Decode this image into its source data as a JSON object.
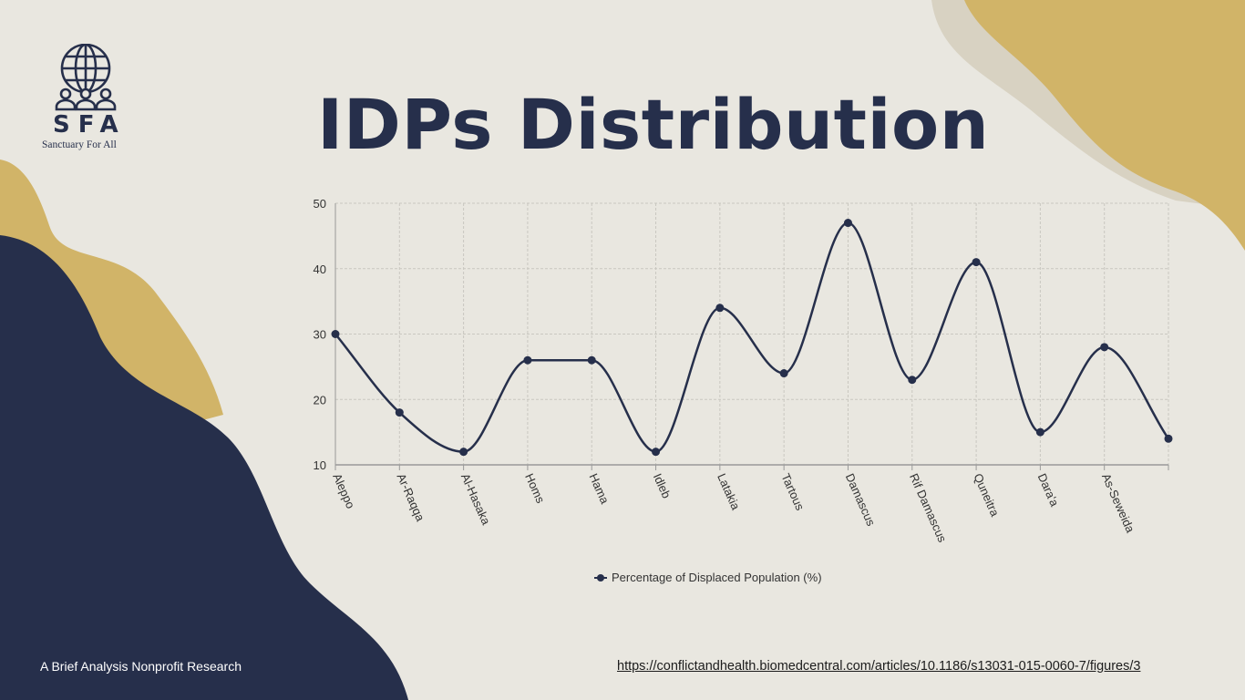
{
  "logo": {
    "initials": "SFA",
    "name": "Sanctuary For All"
  },
  "title": "IDPs Distribution",
  "footer": {
    "left": "A Brief Analysis Nonprofit Research",
    "link": "https://conflictandhealth.biomedcentral.com/articles/10.1186/s13031-015-0060-7/figures/3"
  },
  "colors": {
    "background": "#e9e7e0",
    "navy": "#262f4b",
    "gold": "#d1b468",
    "tan": "#d8d2c2"
  },
  "chart_data": {
    "type": "line",
    "title": "IDPs Distribution",
    "xlabel": "",
    "ylabel": "",
    "ylim": [
      10,
      50
    ],
    "yticks": [
      "10",
      "20",
      "30",
      "40",
      "50"
    ],
    "categories": [
      "Aleppo",
      "Ar-Raqqa",
      "Al-Hasaka",
      "Homs",
      "Hama",
      "Idleb",
      "Latakia",
      "Tartous",
      "Damascus",
      "Rif Damascus",
      "Quneitra",
      "Dara'a",
      "As-Seweida",
      ""
    ],
    "series": [
      {
        "name": "Percentage of Displaced Population (%)",
        "values": [
          30,
          18,
          12,
          26,
          26,
          12,
          34,
          24,
          47,
          23,
          41,
          15,
          28,
          14
        ]
      }
    ],
    "grid": true,
    "legend": "bottom-center"
  }
}
